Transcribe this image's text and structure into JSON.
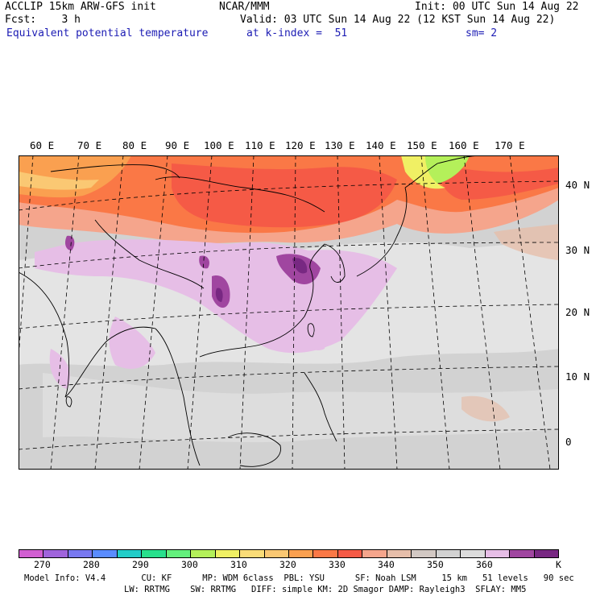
{
  "header": {
    "left_line1": "ACCLIP 15km ARW-GFS init",
    "center_line1": "NCAR/MMM",
    "right_line1": "Init: 00 UTC Sun 14 Aug 22",
    "left_line2": "Fcst:    3 h",
    "right_line2": "Valid: 03 UTC Sun 14 Aug 22 (12 KST Sun 14 Aug 22)",
    "field_name": "Equivalent potential temperature",
    "level": "at k-index =  51",
    "smoothing": "sm= 2"
  },
  "map": {
    "lon_labels": [
      "60 E",
      "70 E",
      "80 E",
      "90 E",
      "100 E",
      "110 E",
      "120 E",
      "130 E",
      "140 E",
      "150 E",
      "160 E",
      "170 E"
    ],
    "lat_labels": [
      "40 N",
      "30 N",
      "20 N",
      "10 N",
      "0"
    ]
  },
  "colorbar": {
    "colors": [
      "#d25fd2",
      "#a064dc",
      "#7878f0",
      "#5a8cff",
      "#23cdc8",
      "#28e08c",
      "#64f07d",
      "#b4f05a",
      "#f0f064",
      "#fadc78",
      "#fac873",
      "#faa050",
      "#fa7846",
      "#f55a46",
      "#f5a58c",
      "#e6beaa",
      "#d2c8c3",
      "#d2d2d2",
      "#dcdcdc",
      "#e6bee6",
      "#a046a0",
      "#782882"
    ],
    "labels": [
      "270",
      "280",
      "290",
      "300",
      "310",
      "320",
      "330",
      "340",
      "350",
      "360"
    ],
    "unit": "K"
  },
  "footer": {
    "line1": "Model Info: V4.4       CU: KF      MP: WDM 6class  PBL: YSU      SF: Noah LSM     15 km   51 levels   90 sec",
    "line2": "LW: RRTMG    SW: RRTMG   DIFF: simple KM: 2D Smagor DAMP: Rayleigh3  SFLAY: MM5"
  }
}
